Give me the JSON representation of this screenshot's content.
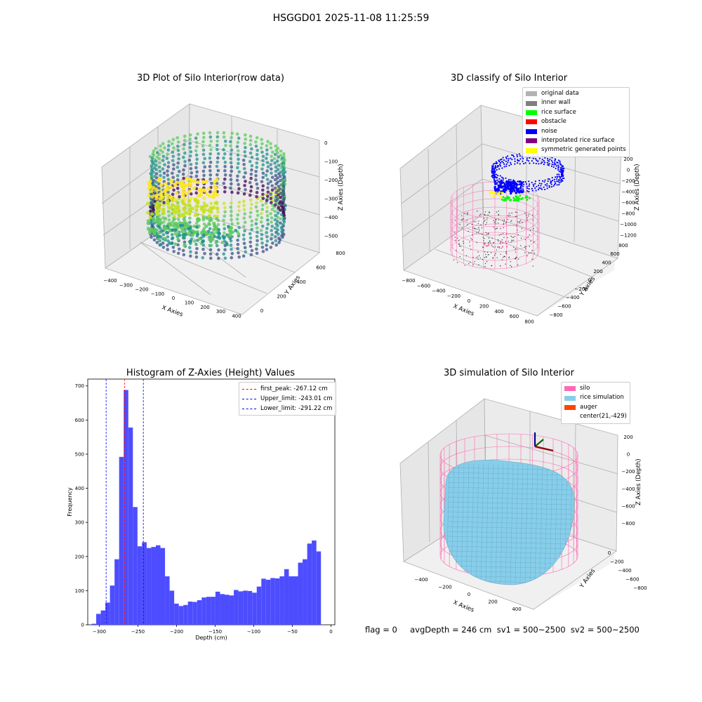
{
  "figure": {
    "suptitle": "HSGGD01 2025-11-08 11:25:59",
    "footer": "flag = 0     avgDepth = 246 cm  sv1 = 500~2500  sv2 = 500~2500"
  },
  "colors": {
    "original": "#b3b3b3",
    "inner_wall": "#808080",
    "rice_surface": "#00ff00",
    "obstacle": "#ff0000",
    "noise": "#0000ff",
    "interpolated": "#800080",
    "symmetric": "#ffff00",
    "silo": "#ff69b4",
    "rice_sim": "#87ceeb",
    "auger": "#ff4500",
    "hist_bar": "#4d4dff",
    "peak_line": "#ff0000",
    "limit_line": "#0000ff"
  },
  "chart_data": [
    {
      "type": "scatter",
      "subtype": "3d",
      "title": "3D Plot of Silo Interior(row data)",
      "xlabel": "X Axies",
      "ylabel": "Y Axies",
      "zlabel": "Z Axies (Depth)",
      "xticks": [
        "−400",
        "−300",
        "−200",
        "−100",
        "0",
        "100",
        "200",
        "300",
        "400"
      ],
      "yticks": [
        "0",
        "200",
        "400",
        "600",
        "800"
      ],
      "zticks": [
        "0",
        "−100",
        "−200",
        "−300",
        "−400",
        "−500"
      ],
      "colormap": "viridis"
    },
    {
      "type": "scatter",
      "subtype": "3d",
      "title": "3D classify of Silo Interior",
      "xlabel": "X Axies",
      "ylabel": "Y Axies",
      "zlabel": "Z Axies (Depth)",
      "xticks": [
        "−800",
        "−600",
        "−400",
        "−200",
        "0",
        "200",
        "400",
        "600",
        "800"
      ],
      "yticks": [
        "−800",
        "−600",
        "−400",
        "−200",
        "0",
        "200",
        "400",
        "600",
        "800"
      ],
      "zticks": [
        "200",
        "0",
        "−200",
        "−400",
        "−600",
        "−800",
        "−1000",
        "−1200"
      ],
      "legend": [
        "original data",
        "inner wall",
        "rice surface",
        "obstacle",
        "noise",
        "interpolated rice surface",
        "symmetric generated points"
      ]
    },
    {
      "type": "bar",
      "title": "Histogram of Z-Axies (Height) Values",
      "xlabel": "Depth (cm)",
      "ylabel": "Frequency",
      "xlim": [
        -315,
        5
      ],
      "ylim": [
        0,
        720
      ],
      "xticks": [
        -300,
        -250,
        -200,
        -150,
        -100,
        -50,
        0
      ],
      "xtick_labels": [
        "−300",
        "−250",
        "−200",
        "−150",
        "−100",
        "−50",
        "0"
      ],
      "yticks": [
        0,
        100,
        200,
        300,
        400,
        500,
        600,
        700
      ],
      "bin_start": -310,
      "bin_width": 5.94,
      "values": [
        3,
        32,
        42,
        65,
        115,
        192,
        492,
        688,
        578,
        345,
        230,
        242,
        225,
        228,
        233,
        225,
        142,
        100,
        62,
        55,
        58,
        68,
        67,
        72,
        80,
        82,
        82,
        97,
        90,
        88,
        86,
        102,
        98,
        100,
        99,
        94,
        112,
        135,
        132,
        137,
        136,
        142,
        163,
        142,
        142,
        182,
        192,
        238,
        247,
        215
      ],
      "lines": [
        {
          "name": "first_peak: -267.12 cm",
          "x": -267.12,
          "color": "#ff0000"
        },
        {
          "name": "Upper_limit: -243.01 cm",
          "x": -243.01,
          "color": "#0000ff"
        },
        {
          "name": "Lower_limit: -291.22 cm",
          "x": -291.22,
          "color": "#0000ff"
        }
      ]
    },
    {
      "type": "surface",
      "subtype": "3d",
      "title": "3D simulation of Silo Interior",
      "xlabel": "X Axies",
      "ylabel": "Y Axies",
      "zlabel": "Z Axies (Depth)",
      "xticks": [
        "−400",
        "−200",
        "0",
        "200",
        "400"
      ],
      "yticks": [
        "0",
        "−200",
        "−400",
        "−600",
        "−800"
      ],
      "zticks": [
        "200",
        "0",
        "−200",
        "−400",
        "−600",
        "−800"
      ],
      "legend": [
        "silo",
        "rice simulation",
        "auger",
        "center(21,-429)"
      ]
    }
  ]
}
